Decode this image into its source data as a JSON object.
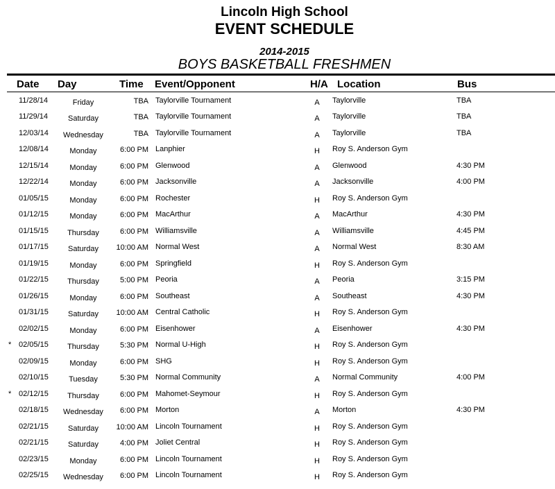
{
  "header": {
    "school": "Lincoln High School",
    "title": "EVENT SCHEDULE",
    "season": "2014-2015",
    "team": "BOYS BASKETBALL FRESHMEN"
  },
  "columns": {
    "date": "Date",
    "day": "Day",
    "time": "Time",
    "event": "Event/Opponent",
    "ha": "H/A",
    "location": "Location",
    "bus": "Bus"
  },
  "rows": [
    {
      "mark": "",
      "date": "11/28/14",
      "day": "Friday",
      "time": "TBA",
      "event": "Taylorville Tournament",
      "ha": "A",
      "location": "Taylorville",
      "bus": "TBA"
    },
    {
      "mark": "",
      "date": "11/29/14",
      "day": "Saturday",
      "time": "TBA",
      "event": "Taylorville Tournament",
      "ha": "A",
      "location": "Taylorville",
      "bus": "TBA"
    },
    {
      "mark": "",
      "date": "12/03/14",
      "day": "Wednesday",
      "time": "TBA",
      "event": "Taylorville Tournament",
      "ha": "A",
      "location": "Taylorville",
      "bus": "TBA"
    },
    {
      "mark": "",
      "date": "12/08/14",
      "day": "Monday",
      "time": "6:00 PM",
      "event": "Lanphier",
      "ha": "H",
      "location": "Roy S. Anderson Gym",
      "bus": ""
    },
    {
      "mark": "",
      "date": "12/15/14",
      "day": "Monday",
      "time": "6:00 PM",
      "event": "Glenwood",
      "ha": "A",
      "location": "Glenwood",
      "bus": "4:30 PM"
    },
    {
      "mark": "",
      "date": "12/22/14",
      "day": "Monday",
      "time": "6:00 PM",
      "event": "Jacksonville",
      "ha": "A",
      "location": "Jacksonville",
      "bus": "4:00 PM"
    },
    {
      "mark": "",
      "date": "01/05/15",
      "day": "Monday",
      "time": "6:00 PM",
      "event": "Rochester",
      "ha": "H",
      "location": "Roy S. Anderson Gym",
      "bus": ""
    },
    {
      "mark": "",
      "date": "01/12/15",
      "day": "Monday",
      "time": "6:00 PM",
      "event": "MacArthur",
      "ha": "A",
      "location": "MacArthur",
      "bus": "4:30 PM"
    },
    {
      "mark": "",
      "date": "01/15/15",
      "day": "Thursday",
      "time": "6:00 PM",
      "event": "Williamsville",
      "ha": "A",
      "location": "Williamsville",
      "bus": "4:45 PM"
    },
    {
      "mark": "",
      "date": "01/17/15",
      "day": "Saturday",
      "time": "10:00 AM",
      "event": "Normal West",
      "ha": "A",
      "location": "Normal West",
      "bus": "8:30 AM"
    },
    {
      "mark": "",
      "date": "01/19/15",
      "day": "Monday",
      "time": "6:00 PM",
      "event": "Springfield",
      "ha": "H",
      "location": "Roy S. Anderson Gym",
      "bus": ""
    },
    {
      "mark": "",
      "date": "01/22/15",
      "day": "Thursday",
      "time": "5:00 PM",
      "event": "Peoria",
      "ha": "A",
      "location": "Peoria",
      "bus": "3:15 PM"
    },
    {
      "mark": "",
      "date": "01/26/15",
      "day": "Monday",
      "time": "6:00 PM",
      "event": "Southeast",
      "ha": "A",
      "location": "Southeast",
      "bus": "4:30 PM"
    },
    {
      "mark": "",
      "date": "01/31/15",
      "day": "Saturday",
      "time": "10:00 AM",
      "event": "Central Catholic",
      "ha": "H",
      "location": "Roy S. Anderson Gym",
      "bus": ""
    },
    {
      "mark": "",
      "date": "02/02/15",
      "day": "Monday",
      "time": "6:00 PM",
      "event": "Eisenhower",
      "ha": "A",
      "location": "Eisenhower",
      "bus": "4:30 PM"
    },
    {
      "mark": "*",
      "date": "02/05/15",
      "day": "Thursday",
      "time": "5:30 PM",
      "event": "Normal U-High",
      "ha": "H",
      "location": "Roy S. Anderson Gym",
      "bus": ""
    },
    {
      "mark": "",
      "date": "02/09/15",
      "day": "Monday",
      "time": "6:00 PM",
      "event": "SHG",
      "ha": "H",
      "location": "Roy S. Anderson Gym",
      "bus": ""
    },
    {
      "mark": "",
      "date": "02/10/15",
      "day": "Tuesday",
      "time": "5:30 PM",
      "event": "Normal Community",
      "ha": "A",
      "location": "Normal Community",
      "bus": "4:00 PM"
    },
    {
      "mark": "*",
      "date": "02/12/15",
      "day": "Thursday",
      "time": "6:00 PM",
      "event": "Mahomet-Seymour",
      "ha": "H",
      "location": "Roy S. Anderson Gym",
      "bus": ""
    },
    {
      "mark": "",
      "date": "02/18/15",
      "day": "Wednesday",
      "time": "6:00 PM",
      "event": "Morton",
      "ha": "A",
      "location": "Morton",
      "bus": "4:30 PM"
    },
    {
      "mark": "",
      "date": "02/21/15",
      "day": "Saturday",
      "time": "10:00 AM",
      "event": "Lincoln Tournament",
      "ha": "H",
      "location": "Roy S. Anderson Gym",
      "bus": ""
    },
    {
      "mark": "",
      "date": "02/21/15",
      "day": "Saturday",
      "time": "4:00 PM",
      "event": "Joliet Central",
      "ha": "H",
      "location": "Roy S. Anderson Gym",
      "bus": ""
    },
    {
      "mark": "",
      "date": "02/23/15",
      "day": "Monday",
      "time": "6:00 PM",
      "event": "Lincoln Tournament",
      "ha": "H",
      "location": "Roy S. Anderson Gym",
      "bus": ""
    },
    {
      "mark": "",
      "date": "02/25/15",
      "day": "Wednesday",
      "time": "6:00 PM",
      "event": "Lincoln Tournament",
      "ha": "H",
      "location": "Roy S. Anderson Gym",
      "bus": ""
    }
  ]
}
